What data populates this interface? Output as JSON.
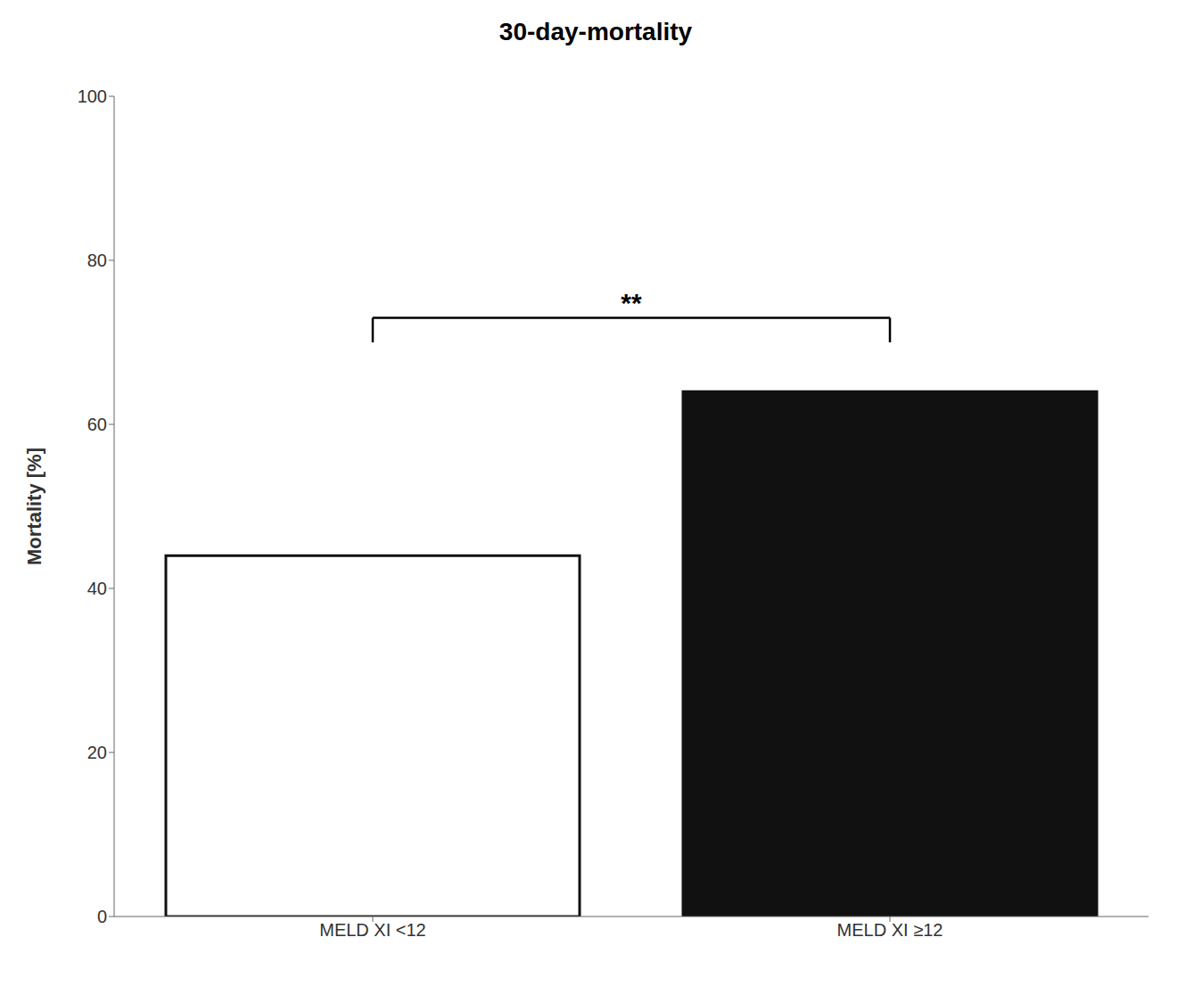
{
  "chart_data": {
    "type": "bar",
    "title": "30-day-mortality",
    "ylabel": "Mortality [%]",
    "categories": [
      "MELD XI <12",
      "MELD XI ≥12"
    ],
    "values": [
      44.0,
      64.0
    ],
    "colors": [
      "#ffffff",
      "#111111"
    ],
    "ylim": [
      0,
      100
    ],
    "yticks": [
      0,
      20,
      40,
      60,
      80,
      100
    ],
    "grid": false,
    "annotations": [
      {
        "type": "bracket",
        "text": "**",
        "between": [
          "MELD XI <12",
          "MELD XI ≥12"
        ],
        "y": 73,
        "height": 3
      }
    ]
  }
}
